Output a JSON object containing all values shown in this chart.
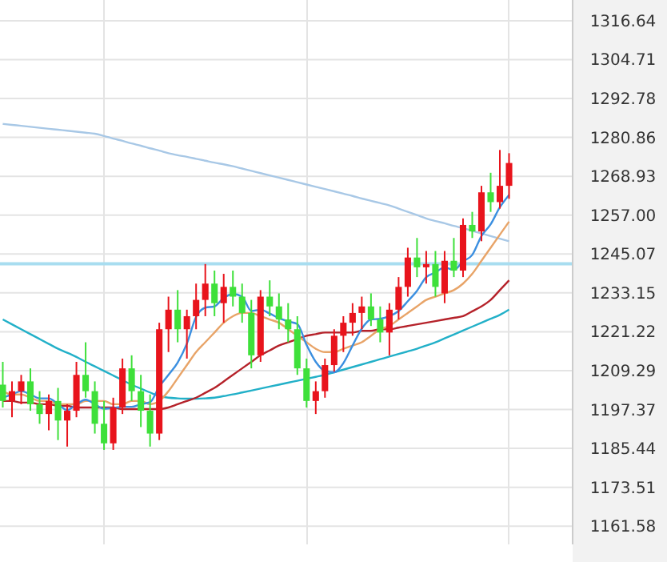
{
  "chart_data": {
    "type": "candlestick",
    "categories": [
      null,
      null,
      null,
      null,
      null,
      null,
      null,
      null,
      null,
      null,
      null,
      null,
      null,
      null,
      null,
      null,
      null,
      null,
      null,
      null,
      null,
      null,
      null,
      null,
      null,
      null,
      null,
      null,
      null,
      null,
      null,
      null,
      null,
      null,
      null,
      null,
      null,
      null,
      null,
      null,
      null,
      null,
      null,
      null,
      null,
      null,
      null,
      null,
      null,
      null,
      null,
      null,
      null,
      null,
      null,
      null
    ],
    "ohlc": [
      [
        1205,
        1212,
        1198,
        1200
      ],
      [
        1200,
        1206,
        1195,
        1203
      ],
      [
        1203,
        1208,
        1199,
        1206
      ],
      [
        1206,
        1210,
        1197,
        1199
      ],
      [
        1199,
        1203,
        1193,
        1196
      ],
      [
        1196,
        1202,
        1191,
        1200
      ],
      [
        1200,
        1204,
        1188,
        1194
      ],
      [
        1194,
        1199,
        1186,
        1197
      ],
      [
        1197,
        1212,
        1195,
        1208
      ],
      [
        1208,
        1218,
        1201,
        1203
      ],
      [
        1203,
        1206,
        1190,
        1193
      ],
      [
        1193,
        1200,
        1185,
        1187
      ],
      [
        1187,
        1201,
        1185,
        1198
      ],
      [
        1198,
        1213,
        1196,
        1210
      ],
      [
        1210,
        1214,
        1200,
        1203
      ],
      [
        1203,
        1208,
        1192,
        1197
      ],
      [
        1197,
        1202,
        1186,
        1190
      ],
      [
        1190,
        1224,
        1188,
        1222
      ],
      [
        1222,
        1232,
        1215,
        1228
      ],
      [
        1228,
        1234,
        1218,
        1222
      ],
      [
        1222,
        1228,
        1213,
        1226
      ],
      [
        1226,
        1236,
        1222,
        1231
      ],
      [
        1231,
        1242,
        1226,
        1236
      ],
      [
        1236,
        1240,
        1226,
        1230
      ],
      [
        1230,
        1239,
        1224,
        1235
      ],
      [
        1235,
        1240,
        1229,
        1232
      ],
      [
        1232,
        1236,
        1224,
        1227
      ],
      [
        1227,
        1231,
        1210,
        1214
      ],
      [
        1214,
        1234,
        1212,
        1232
      ],
      [
        1232,
        1237,
        1226,
        1229
      ],
      [
        1229,
        1233,
        1222,
        1225
      ],
      [
        1225,
        1230,
        1218,
        1222
      ],
      [
        1222,
        1226,
        1208,
        1210
      ],
      [
        1210,
        1213,
        1198,
        1200
      ],
      [
        1200,
        1206,
        1196,
        1203
      ],
      [
        1203,
        1213,
        1201,
        1211
      ],
      [
        1211,
        1222,
        1209,
        1220
      ],
      [
        1220,
        1226,
        1215,
        1224
      ],
      [
        1224,
        1230,
        1220,
        1227
      ],
      [
        1227,
        1232,
        1222,
        1229
      ],
      [
        1229,
        1233,
        1223,
        1225
      ],
      [
        1225,
        1229,
        1218,
        1221
      ],
      [
        1221,
        1230,
        1214,
        1228
      ],
      [
        1228,
        1238,
        1225,
        1235
      ],
      [
        1235,
        1247,
        1232,
        1244
      ],
      [
        1244,
        1250,
        1238,
        1241
      ],
      [
        1241,
        1246,
        1236,
        1242
      ],
      [
        1242,
        1246,
        1232,
        1235
      ],
      [
        1233,
        1246,
        1230,
        1243
      ],
      [
        1243,
        1250,
        1238,
        1240
      ],
      [
        1240,
        1256,
        1238,
        1254
      ],
      [
        1254,
        1258,
        1250,
        1252
      ],
      [
        1252,
        1266,
        1249,
        1264
      ],
      [
        1264,
        1270,
        1258,
        1261
      ],
      [
        1261,
        1277,
        1259,
        1266
      ],
      [
        1266,
        1276,
        1262,
        1273
      ]
    ],
    "series": [
      {
        "type": "line",
        "color": "#a8c8e6",
        "values": [
          1285,
          1284.7,
          1284.4,
          1284.1,
          1283.8,
          1283.5,
          1283.2,
          1282.9,
          1282.6,
          1282.3,
          1282,
          1281.3,
          1280.5,
          1279.8,
          1279,
          1278.3,
          1277.5,
          1276.8,
          1276,
          1275.4,
          1274.9,
          1274.3,
          1273.7,
          1273.1,
          1272.6,
          1272,
          1271.3,
          1270.6,
          1269.9,
          1269.2,
          1268.5,
          1267.8,
          1267.1,
          1266.4,
          1265.7,
          1265,
          1264.3,
          1263.6,
          1262.9,
          1262.1,
          1261.4,
          1260.7,
          1260,
          1259,
          1258,
          1257,
          1256,
          1255.2,
          1254.5,
          1253.7,
          1253,
          1252.2,
          1251.4,
          1250.6,
          1249.8,
          1249
        ]
      },
      {
        "type": "line",
        "color": "#22b0c8",
        "values": [
          1225,
          1223.5,
          1222,
          1220.5,
          1219,
          1217.5,
          1216,
          1214.8,
          1213.5,
          1212,
          1210.6,
          1209.2,
          1207.8,
          1206.4,
          1205,
          1203.8,
          1202.6,
          1201.5,
          1201,
          1200.8,
          1200.7,
          1200.7,
          1200.8,
          1201,
          1201.5,
          1202,
          1202.6,
          1203.2,
          1203.8,
          1204.4,
          1205,
          1205.6,
          1206.2,
          1206.8,
          1207.4,
          1208,
          1208.8,
          1209.6,
          1210.4,
          1211.2,
          1212,
          1212.8,
          1213.6,
          1214.4,
          1215.2,
          1216,
          1217,
          1218,
          1219.2,
          1220.4,
          1221.6,
          1222.8,
          1224,
          1225.2,
          1226.4,
          1228
        ]
      },
      {
        "type": "line",
        "color": "#b5222a",
        "values": [
          1200,
          1200,
          1199.5,
          1199.5,
          1199,
          1199,
          1198.5,
          1198.5,
          1198,
          1198,
          1198,
          1198,
          1198,
          1197.5,
          1197.5,
          1197.5,
          1197.5,
          1197.5,
          1198,
          1199,
          1200,
          1201,
          1202.5,
          1204,
          1206,
          1208,
          1210,
          1212,
          1214,
          1215.5,
          1217,
          1218,
          1219,
          1220,
          1220.5,
          1221,
          1221,
          1221,
          1221,
          1221.5,
          1221.5,
          1222,
          1222,
          1222.5,
          1223,
          1223.5,
          1224,
          1224.5,
          1225,
          1225.5,
          1226,
          1227.5,
          1229,
          1231,
          1234,
          1237
        ]
      },
      {
        "type": "line",
        "color": "#e8a468",
        "values": [
          1203,
          1202,
          1202,
          1201,
          1200,
          1200,
          1199,
          1199,
          1199,
          1200,
          1200,
          1200,
          1199,
          1199,
          1200,
          1200,
          1199,
          1200,
          1203,
          1207,
          1211,
          1215,
          1218,
          1221,
          1224,
          1226,
          1227,
          1227,
          1226,
          1225,
          1224,
          1222,
          1220,
          1218,
          1216,
          1215,
          1215,
          1216,
          1217,
          1218,
          1220,
          1222,
          1223,
          1225,
          1227,
          1229,
          1231,
          1232,
          1233,
          1234,
          1236,
          1239,
          1243,
          1247,
          1251,
          1255
        ]
      },
      {
        "type": "line",
        "color": "#3b8fe0",
        "values": [
          1201,
          1202,
          1203,
          1202,
          1200.8,
          1200.8,
          1199,
          1197.2,
          1199,
          1200.4,
          1199,
          1197.6,
          1197.8,
          1198.2,
          1198.2,
          1199,
          1199.6,
          1204.4,
          1208,
          1211.8,
          1217.6,
          1225.8,
          1228.6,
          1229,
          1231.6,
          1232.8,
          1232,
          1227.6,
          1228,
          1226.8,
          1225.4,
          1224.4,
          1223.6,
          1217.2,
          1212,
          1209.2,
          1208.8,
          1211.6,
          1217,
          1222.2,
          1225,
          1225.2,
          1226,
          1227.6,
          1230.6,
          1233.8,
          1238,
          1239.4,
          1241,
          1240.2,
          1242.8,
          1244.8,
          1250.6,
          1254.2,
          1259.4,
          1263.2
        ]
      }
    ],
    "ylim": [
      1156,
      1323
    ],
    "yticks": [
      1316.64,
      1304.71,
      1292.78,
      1280.86,
      1268.93,
      {
        "value": 1257,
        "label": "1257.00"
      },
      1245.07,
      1233.15,
      1221.22,
      1209.29,
      1197.37,
      1185.44,
      1173.51,
      1161.58
    ],
    "ref_lines": [
      {
        "axis": "y",
        "value": 1242.1,
        "color": "#a8ddf0"
      }
    ],
    "grid": true
  }
}
